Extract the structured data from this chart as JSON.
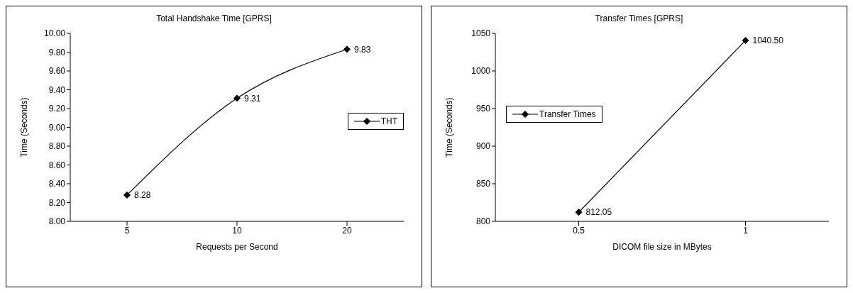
{
  "chart_data": [
    {
      "type": "line",
      "title": "Total Handshake Time [GPRS]",
      "xlabel": "Requests per Second",
      "ylabel": "Time (Seconds)",
      "categories": [
        "5",
        "10",
        "20"
      ],
      "series": [
        {
          "name": "THT",
          "color": "#000000",
          "values": [
            8.28,
            9.31,
            9.83
          ]
        }
      ],
      "ylim": [
        8,
        10
      ],
      "yticks": [
        {
          "value": 8,
          "label": "8.00"
        },
        {
          "value": 8.2,
          "label": "8.20"
        },
        {
          "value": 8.4,
          "label": "8.40"
        },
        {
          "value": 8.6,
          "label": "8.60"
        },
        {
          "value": 8.8,
          "label": "8.80"
        },
        {
          "value": 9,
          "label": "9.00"
        },
        {
          "value": 9.2,
          "label": "9.20"
        },
        {
          "value": 9.4,
          "label": "9.40"
        },
        {
          "value": 9.6,
          "label": "9.60"
        },
        {
          "value": 9.8,
          "label": "9.80"
        },
        {
          "value": 10,
          "label": "10.00"
        }
      ],
      "value_labels": [
        "8.28",
        "9.31",
        "9.83"
      ],
      "grid": false,
      "legend": "right",
      "marker": "diamond",
      "line_style": "solid"
    },
    {
      "type": "line",
      "title": "Transfer Times [GPRS]",
      "xlabel": "DICOM file size in MBytes",
      "ylabel": "Time (Seconds)",
      "x": [
        0.5,
        1
      ],
      "xlim": [
        0.25,
        1.25
      ],
      "xticks": [
        0.5,
        1
      ],
      "series": [
        {
          "name": "Transfer Times",
          "color": "#000000",
          "values": [
            812.05,
            1040.5
          ]
        }
      ],
      "ylim": [
        800,
        1050
      ],
      "yticks": [
        800,
        850,
        900,
        950,
        1000,
        1050
      ],
      "value_labels": [
        "812.05",
        "1040.50"
      ],
      "grid": false,
      "legend": "left",
      "marker": "diamond",
      "line_style": "solid"
    }
  ]
}
